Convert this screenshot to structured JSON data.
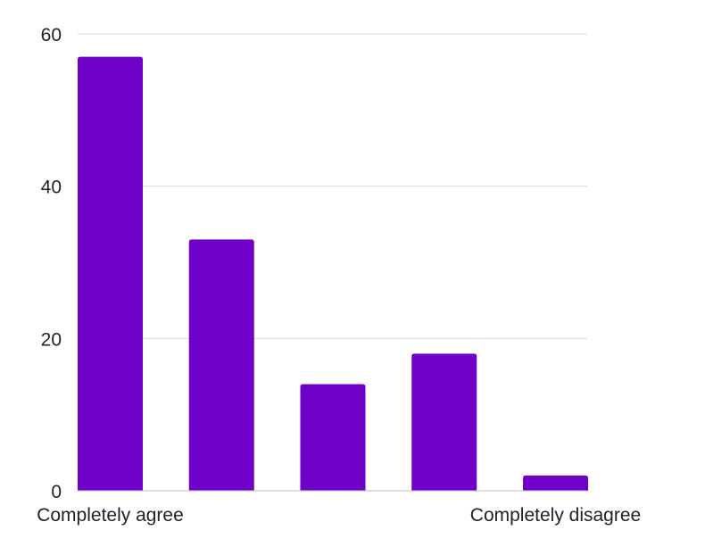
{
  "chart_data": {
    "type": "bar",
    "categories": [
      "Completely agree",
      "",
      "",
      "",
      "Completely disagree"
    ],
    "values": [
      57,
      33,
      14,
      18,
      2
    ],
    "title": "",
    "xlabel": "",
    "ylabel": "",
    "ylim": [
      0,
      60
    ],
    "yticks": [
      0,
      20,
      40,
      60
    ],
    "grid": true,
    "bar_color": "#6e00c8"
  }
}
